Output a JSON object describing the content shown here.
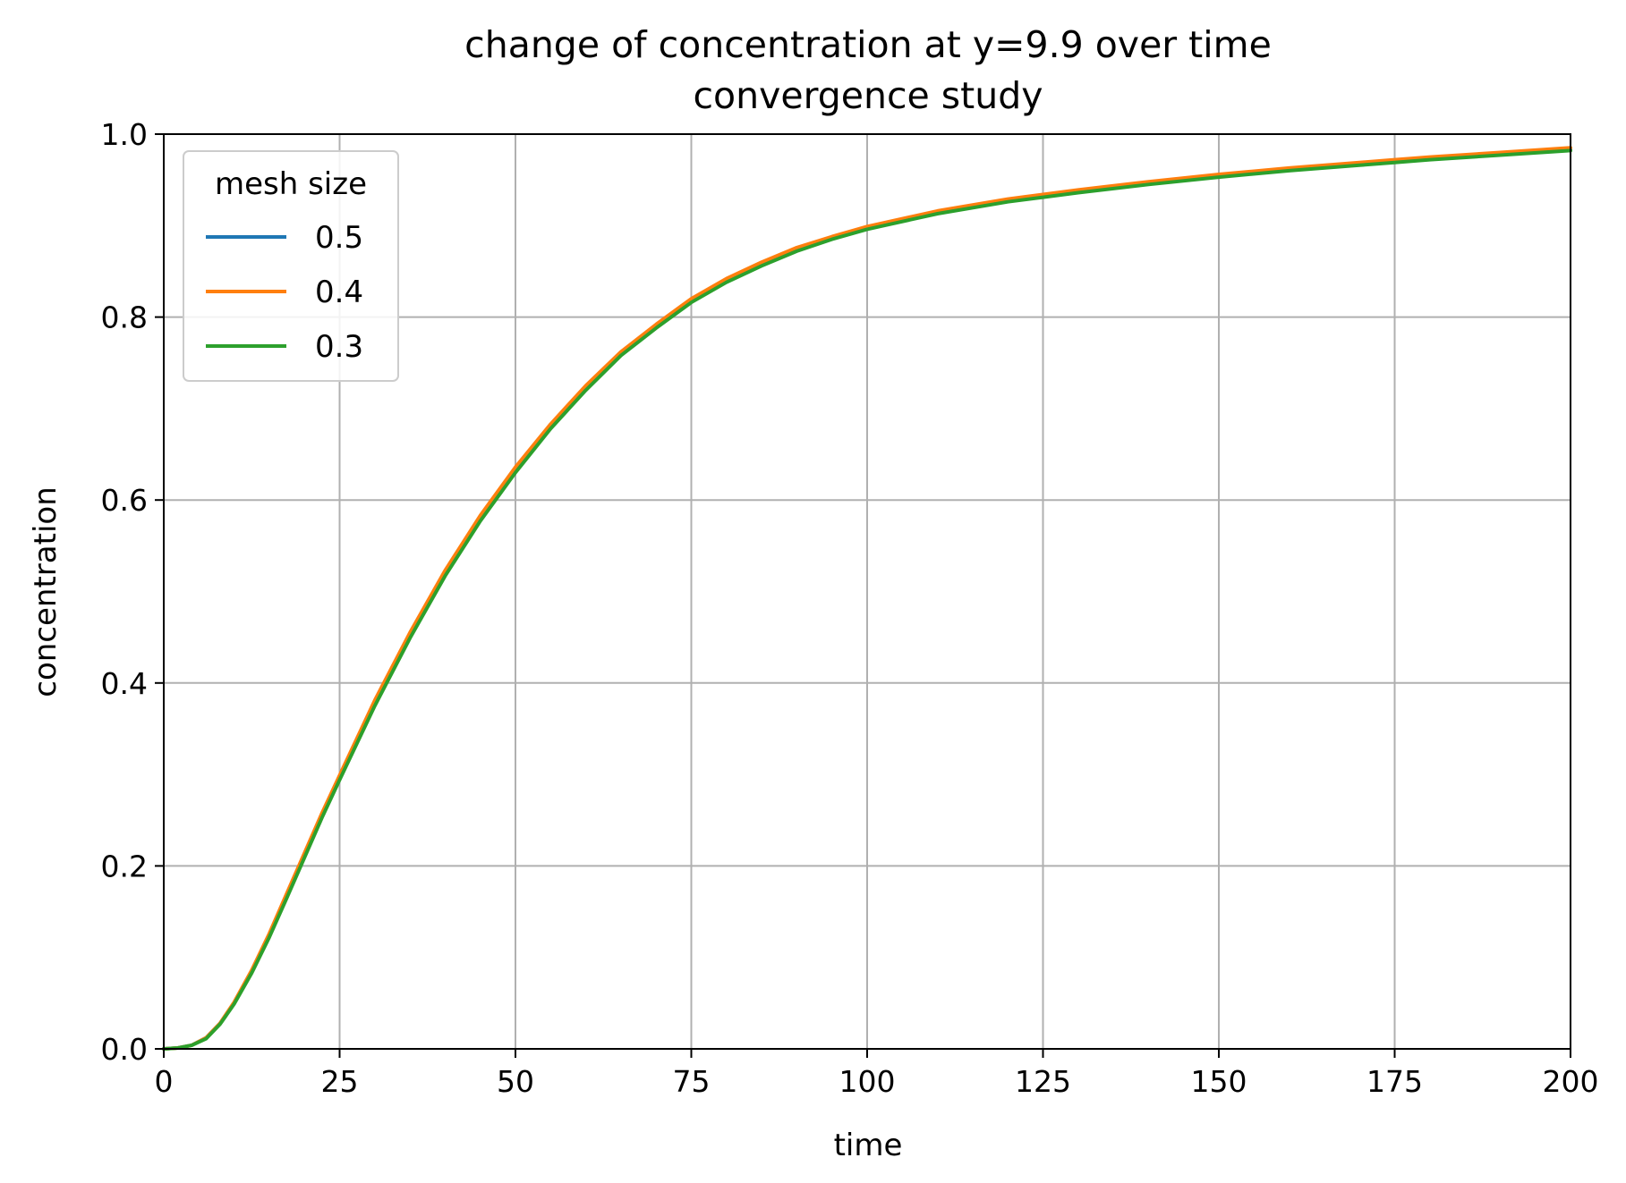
{
  "chart_data": {
    "type": "line",
    "title": "change of concentration at y=9.9 over time",
    "subtitle": "convergence study",
    "xlabel": "time",
    "ylabel": "concentration",
    "xlim": [
      0,
      200
    ],
    "ylim": [
      0,
      1.0
    ],
    "xticks": [
      0,
      25,
      50,
      75,
      100,
      125,
      150,
      175,
      200
    ],
    "yticks": [
      0.0,
      0.2,
      0.4,
      0.6,
      0.8,
      1.0
    ],
    "xtick_labels": [
      "0",
      "25",
      "50",
      "75",
      "100",
      "125",
      "150",
      "175",
      "200"
    ],
    "ytick_labels": [
      "0.0",
      "0.2",
      "0.4",
      "0.6",
      "0.8",
      "1.0"
    ],
    "grid": true,
    "legend": {
      "title": "mesh size",
      "placement": "top-left"
    },
    "x": [
      0,
      2,
      4,
      6,
      8,
      10,
      12.5,
      15,
      17.5,
      20,
      22.5,
      25,
      30,
      35,
      40,
      45,
      50,
      55,
      60,
      65,
      70,
      75,
      80,
      85,
      90,
      95,
      100,
      110,
      120,
      125,
      130,
      140,
      150,
      160,
      170,
      175,
      180,
      190,
      200
    ],
    "series": [
      {
        "name": "0.5",
        "color": "#1f77b4",
        "values": [
          0,
          0.001,
          0.004,
          0.012,
          0.028,
          0.05,
          0.085,
          0.125,
          0.168,
          0.212,
          0.256,
          0.297,
          0.378,
          0.452,
          0.52,
          0.58,
          0.633,
          0.68,
          0.722,
          0.76,
          0.79,
          0.818,
          0.84,
          0.858,
          0.874,
          0.886,
          0.897,
          0.914,
          0.927,
          0.932,
          0.937,
          0.946,
          0.954,
          0.961,
          0.967,
          0.97,
          0.973,
          0.978,
          0.983
        ]
      },
      {
        "name": "0.4",
        "color": "#ff7f0e",
        "values": [
          0,
          0.001,
          0.004,
          0.012,
          0.028,
          0.051,
          0.086,
          0.126,
          0.17,
          0.214,
          0.258,
          0.299,
          0.381,
          0.455,
          0.523,
          0.583,
          0.636,
          0.683,
          0.725,
          0.762,
          0.792,
          0.82,
          0.842,
          0.86,
          0.876,
          0.888,
          0.899,
          0.916,
          0.929,
          0.934,
          0.939,
          0.948,
          0.956,
          0.963,
          0.969,
          0.972,
          0.975,
          0.98,
          0.985
        ]
      },
      {
        "name": "0.3",
        "color": "#2ca02c",
        "values": [
          0,
          0.001,
          0.004,
          0.011,
          0.027,
          0.049,
          0.083,
          0.122,
          0.165,
          0.209,
          0.253,
          0.294,
          0.375,
          0.449,
          0.517,
          0.577,
          0.63,
          0.678,
          0.72,
          0.758,
          0.788,
          0.816,
          0.838,
          0.856,
          0.872,
          0.885,
          0.896,
          0.913,
          0.926,
          0.931,
          0.936,
          0.945,
          0.953,
          0.96,
          0.966,
          0.969,
          0.972,
          0.977,
          0.982
        ]
      }
    ]
  }
}
